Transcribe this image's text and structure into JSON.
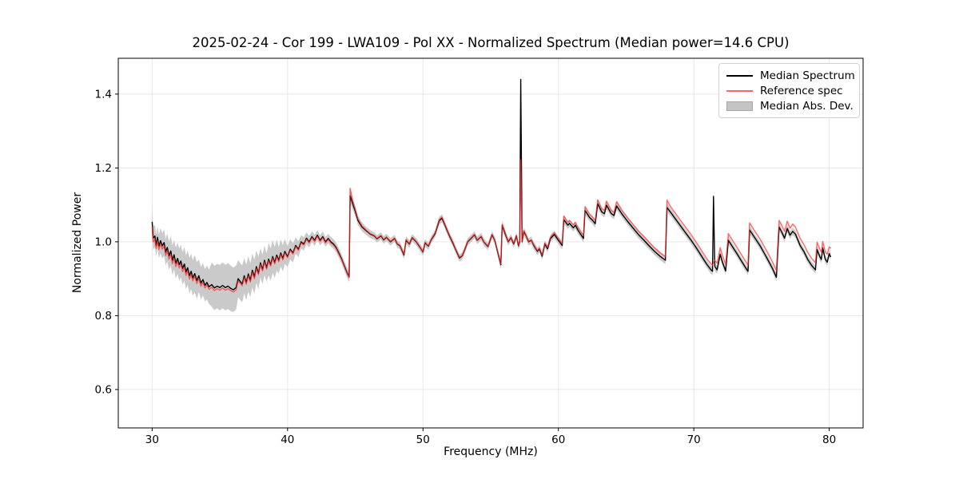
{
  "chart_data": {
    "type": "line",
    "title": "2025-02-24 - Cor 199 - LWA109 - Pol XX - Normalized Spectrum (Median power=14.6 CPU)",
    "xlabel": "Frequency (MHz)",
    "ylabel": "Normalized Power",
    "xlim": [
      27.5,
      82.5
    ],
    "ylim": [
      0.496,
      1.497
    ],
    "grid": true,
    "legend_position": "upper right",
    "xticks": [
      {
        "v": 30,
        "label": "30"
      },
      {
        "v": 40,
        "label": "40"
      },
      {
        "v": 50,
        "label": "50"
      },
      {
        "v": 60,
        "label": "60"
      },
      {
        "v": 70,
        "label": "70"
      },
      {
        "v": 80,
        "label": "80"
      }
    ],
    "yticks": [
      {
        "v": 0.6,
        "label": "0.6"
      },
      {
        "v": 0.8,
        "label": "0.8"
      },
      {
        "v": 1.0,
        "label": "1.0"
      },
      {
        "v": 1.2,
        "label": "1.2"
      },
      {
        "v": 1.4,
        "label": "1.4"
      }
    ],
    "colors": {
      "median": "#000000",
      "reference": "#ff2a2a",
      "reference_opacity": 0.72,
      "band": "#c4c4c4",
      "band_opacity": 0.9,
      "grid": "#e6e6e6",
      "frame": "#000000"
    },
    "series": [
      {
        "name": "Median Spectrum",
        "color": "#000000",
        "style": "line"
      },
      {
        "name": "Reference spec",
        "color": "#ff2a2a",
        "style": "line"
      },
      {
        "name": "Median Abs. Dev.",
        "color": "#c4c4c4",
        "style": "band"
      }
    ],
    "notes": {
      "big_spike": {
        "freq": 57.2,
        "median_peak": 1.44,
        "reference_peak": 1.22,
        "mad_top": 1.476
      },
      "narrow_spike": {
        "freq": 71.45,
        "median_peak": 1.12
      },
      "step_jump": {
        "freq": 44.6,
        "peak": 1.13
      }
    },
    "data": {
      "x": [
        30.0,
        30.08,
        30.2,
        30.3,
        30.4,
        30.5,
        30.62,
        30.75,
        30.88,
        31.0,
        31.12,
        31.25,
        31.38,
        31.5,
        31.62,
        31.75,
        31.88,
        32.0,
        32.12,
        32.25,
        32.38,
        32.5,
        32.62,
        32.75,
        32.88,
        33.0,
        33.15,
        33.3,
        33.45,
        33.6,
        33.75,
        33.9,
        34.05,
        34.2,
        34.4,
        34.6,
        34.8,
        35.0,
        35.2,
        35.4,
        35.6,
        35.8,
        36.0,
        36.2,
        36.35,
        36.5,
        36.65,
        36.8,
        36.95,
        37.1,
        37.25,
        37.4,
        37.55,
        37.7,
        37.85,
        38.0,
        38.15,
        38.3,
        38.45,
        38.6,
        38.75,
        38.9,
        39.05,
        39.2,
        39.35,
        39.5,
        39.65,
        39.8,
        40.0,
        40.2,
        40.4,
        40.6,
        40.8,
        41.0,
        41.2,
        41.4,
        41.6,
        41.8,
        42.0,
        42.2,
        42.4,
        42.6,
        42.8,
        43.0,
        43.2,
        43.4,
        43.6,
        43.8,
        44.0,
        44.2,
        44.4,
        44.55,
        44.62,
        44.8,
        45.0,
        45.2,
        45.5,
        45.8,
        46.1,
        46.4,
        46.6,
        46.9,
        47.1,
        47.3,
        47.6,
        47.9,
        48.1,
        48.3,
        48.6,
        48.75,
        49.0,
        49.2,
        49.5,
        49.8,
        50.0,
        50.15,
        50.4,
        50.6,
        50.9,
        51.2,
        51.4,
        51.6,
        51.9,
        52.2,
        52.4,
        52.7,
        52.9,
        53.1,
        53.3,
        53.6,
        53.8,
        54.0,
        54.3,
        54.5,
        54.8,
        55.1,
        55.3,
        55.5,
        55.75,
        55.85,
        56.1,
        56.3,
        56.5,
        56.7,
        56.9,
        57.05,
        57.15,
        57.22,
        57.32,
        57.45,
        57.6,
        57.8,
        58.0,
        58.2,
        58.45,
        58.6,
        58.8,
        59.0,
        59.2,
        59.4,
        59.7,
        60.0,
        60.28,
        60.4,
        60.7,
        60.82,
        61.1,
        61.25,
        61.45,
        61.65,
        61.85,
        61.97,
        62.3,
        62.5,
        62.72,
        62.9,
        63.2,
        63.4,
        63.55,
        63.9,
        64.1,
        64.3,
        64.7,
        65.1,
        65.5,
        65.9,
        66.3,
        66.7,
        67.1,
        67.5,
        67.9,
        68.02,
        68.3,
        68.6,
        69.0,
        69.4,
        69.8,
        70.1,
        70.4,
        70.7,
        71.0,
        71.25,
        71.38,
        71.45,
        71.55,
        71.72,
        71.95,
        72.12,
        72.35,
        72.55,
        72.9,
        73.2,
        73.5,
        73.8,
        74.0,
        74.12,
        74.5,
        74.9,
        75.2,
        75.5,
        75.8,
        76.1,
        76.3,
        76.5,
        76.7,
        76.9,
        77.1,
        77.3,
        77.5,
        77.85,
        78.15,
        78.4,
        78.7,
        78.98,
        79.1,
        79.3,
        79.42,
        79.52,
        79.7,
        79.85,
        80.0,
        80.1
      ],
      "median": [
        1.053,
        1.01,
        1.016,
        0.99,
        1.012,
        0.988,
        1.003,
        0.989,
        0.998,
        0.972,
        0.985,
        0.962,
        0.975,
        0.95,
        0.965,
        0.942,
        0.955,
        0.938,
        0.948,
        0.928,
        0.94,
        0.918,
        0.93,
        0.908,
        0.92,
        0.902,
        0.914,
        0.895,
        0.908,
        0.888,
        0.898,
        0.882,
        0.89,
        0.878,
        0.884,
        0.875,
        0.88,
        0.876,
        0.882,
        0.876,
        0.88,
        0.874,
        0.87,
        0.876,
        0.9,
        0.893,
        0.886,
        0.908,
        0.89,
        0.913,
        0.896,
        0.923,
        0.905,
        0.933,
        0.915,
        0.943,
        0.925,
        0.95,
        0.93,
        0.953,
        0.938,
        0.96,
        0.944,
        0.964,
        0.95,
        0.97,
        0.955,
        0.974,
        0.96,
        0.98,
        0.97,
        0.99,
        0.98,
        1.0,
        0.994,
        1.01,
        1.0,
        1.014,
        1.004,
        1.018,
        1.004,
        1.014,
        1.0,
        1.009,
        1.0,
        0.994,
        0.984,
        0.969,
        0.953,
        0.934,
        0.916,
        0.905,
        1.125,
        1.104,
        1.083,
        1.058,
        1.04,
        1.03,
        1.021,
        1.016,
        1.008,
        1.016,
        1.005,
        1.012,
        1.0,
        1.009,
        0.994,
        0.989,
        0.964,
        1.004,
        0.994,
        1.011,
        1.0,
        0.984,
        0.972,
        0.997,
        0.988,
        1.005,
        1.022,
        1.057,
        1.064,
        1.047,
        1.02,
        0.997,
        0.98,
        0.956,
        0.962,
        0.98,
        1.0,
        1.011,
        1.019,
        1.004,
        1.014,
        0.999,
        0.987,
        1.019,
        1.004,
        0.974,
        0.938,
        1.044,
        1.019,
        1.0,
        1.011,
        0.994,
        1.016,
        0.989,
        1.0,
        1.44,
        1.0,
        1.028,
        1.017,
        1.0,
        1.004,
        0.989,
        0.974,
        0.981,
        0.961,
        0.994,
        0.981,
        1.008,
        1.02,
        1.004,
        0.99,
        1.06,
        1.045,
        1.05,
        1.038,
        1.045,
        1.031,
        1.02,
        1.009,
        1.085,
        1.066,
        1.059,
        1.049,
        1.103,
        1.081,
        1.076,
        1.099,
        1.077,
        1.071,
        1.097,
        1.075,
        1.056,
        1.038,
        1.02,
        1.005,
        0.989,
        0.974,
        0.961,
        0.95,
        1.093,
        1.079,
        1.064,
        1.044,
        1.024,
        1.004,
        0.988,
        0.971,
        0.954,
        0.937,
        0.925,
        0.92,
        1.123,
        0.933,
        0.924,
        0.966,
        0.944,
        0.921,
        1.004,
        0.984,
        0.967,
        0.949,
        0.931,
        0.92,
        1.032,
        1.011,
        0.989,
        0.969,
        0.949,
        0.928,
        0.904,
        1.04,
        1.026,
        1.01,
        1.036,
        1.018,
        1.028,
        1.021,
        0.99,
        0.972,
        0.953,
        0.936,
        0.924,
        0.979,
        0.96,
        0.952,
        0.983,
        0.953,
        0.945,
        0.968,
        0.96
      ],
      "reference": [
        1.04,
        1.0,
        1.006,
        0.982,
        1.003,
        0.979,
        0.994,
        0.98,
        0.989,
        0.963,
        0.976,
        0.953,
        0.966,
        0.941,
        0.956,
        0.933,
        0.946,
        0.929,
        0.939,
        0.919,
        0.931,
        0.909,
        0.921,
        0.899,
        0.911,
        0.894,
        0.906,
        0.887,
        0.9,
        0.88,
        0.89,
        0.875,
        0.883,
        0.871,
        0.877,
        0.868,
        0.873,
        0.869,
        0.875,
        0.869,
        0.873,
        0.868,
        0.864,
        0.87,
        0.894,
        0.888,
        0.881,
        0.903,
        0.885,
        0.908,
        0.891,
        0.918,
        0.9,
        0.928,
        0.911,
        0.939,
        0.921,
        0.946,
        0.926,
        0.949,
        0.934,
        0.956,
        0.94,
        0.96,
        0.946,
        0.966,
        0.951,
        0.97,
        0.957,
        0.977,
        0.967,
        0.987,
        0.977,
        0.997,
        0.991,
        1.007,
        0.997,
        1.011,
        1.001,
        1.015,
        1.001,
        1.011,
        0.997,
        1.006,
        0.997,
        0.991,
        0.981,
        0.966,
        0.951,
        0.932,
        0.914,
        0.903,
        1.145,
        1.112,
        1.088,
        1.062,
        1.043,
        1.032,
        1.022,
        1.017,
        1.009,
        1.017,
        1.006,
        1.013,
        1.001,
        1.01,
        0.995,
        0.99,
        0.966,
        1.006,
        0.995,
        1.012,
        1.001,
        0.985,
        0.973,
        0.999,
        0.989,
        1.006,
        1.024,
        1.06,
        1.067,
        1.049,
        1.022,
        0.999,
        0.981,
        0.958,
        0.963,
        0.981,
        1.001,
        1.012,
        1.02,
        1.005,
        1.015,
        1.0,
        0.988,
        1.02,
        1.005,
        0.975,
        0.94,
        1.047,
        1.021,
        1.001,
        1.012,
        0.995,
        1.017,
        0.99,
        1.001,
        1.222,
        1.001,
        1.03,
        1.018,
        1.001,
        1.005,
        0.991,
        0.976,
        0.983,
        0.964,
        0.997,
        0.985,
        1.012,
        1.025,
        1.009,
        0.995,
        1.07,
        1.053,
        1.058,
        1.046,
        1.053,
        1.039,
        1.028,
        1.017,
        1.095,
        1.075,
        1.068,
        1.058,
        1.114,
        1.09,
        1.085,
        1.11,
        1.086,
        1.08,
        1.109,
        1.085,
        1.066,
        1.048,
        1.03,
        1.015,
        0.999,
        0.984,
        0.971,
        0.96,
        1.113,
        1.094,
        1.079,
        1.059,
        1.039,
        1.019,
        1.003,
        0.986,
        0.969,
        0.952,
        0.941,
        0.936,
        0.944,
        0.95,
        0.942,
        0.984,
        0.962,
        0.939,
        1.022,
        1.001,
        0.984,
        0.966,
        0.948,
        0.937,
        1.051,
        1.029,
        1.007,
        0.987,
        0.967,
        0.946,
        0.922,
        1.058,
        1.044,
        1.028,
        1.056,
        1.037,
        1.048,
        1.04,
        1.009,
        0.991,
        0.972,
        0.955,
        0.943,
        0.999,
        0.98,
        0.972,
        1.001,
        0.973,
        0.966,
        0.986,
        0.983
      ],
      "mad": [
        0.037,
        0.032,
        0.03,
        0.03,
        0.03,
        0.032,
        0.034,
        0.034,
        0.036,
        0.036,
        0.038,
        0.038,
        0.04,
        0.04,
        0.04,
        0.042,
        0.042,
        0.044,
        0.044,
        0.044,
        0.046,
        0.046,
        0.046,
        0.048,
        0.048,
        0.048,
        0.05,
        0.05,
        0.044,
        0.044,
        0.044,
        0.044,
        0.046,
        0.046,
        0.06,
        0.06,
        0.06,
        0.062,
        0.062,
        0.062,
        0.062,
        0.062,
        0.06,
        0.06,
        0.05,
        0.05,
        0.05,
        0.048,
        0.048,
        0.048,
        0.046,
        0.046,
        0.046,
        0.044,
        0.044,
        0.04,
        0.04,
        0.04,
        0.038,
        0.044,
        0.044,
        0.044,
        0.042,
        0.042,
        0.036,
        0.036,
        0.036,
        0.034,
        0.028,
        0.028,
        0.026,
        0.022,
        0.022,
        0.018,
        0.018,
        0.016,
        0.016,
        0.015,
        0.015,
        0.014,
        0.014,
        0.014,
        0.013,
        0.013,
        0.013,
        0.013,
        0.013,
        0.013,
        0.013,
        0.013,
        0.014,
        0.015,
        0.02,
        0.016,
        0.014,
        0.013,
        0.012,
        0.011,
        0.011,
        0.01,
        0.01,
        0.01,
        0.01,
        0.01,
        0.01,
        0.01,
        0.01,
        0.01,
        0.011,
        0.011,
        0.01,
        0.01,
        0.01,
        0.01,
        0.01,
        0.01,
        0.01,
        0.01,
        0.01,
        0.011,
        0.011,
        0.01,
        0.01,
        0.01,
        0.01,
        0.01,
        0.01,
        0.01,
        0.01,
        0.01,
        0.01,
        0.01,
        0.01,
        0.01,
        0.01,
        0.01,
        0.01,
        0.01,
        0.012,
        0.013,
        0.011,
        0.01,
        0.01,
        0.01,
        0.01,
        0.01,
        0.012,
        0.036,
        0.012,
        0.01,
        0.01,
        0.01,
        0.01,
        0.01,
        0.01,
        0.01,
        0.01,
        0.01,
        0.01,
        0.01,
        0.01,
        0.01,
        0.011,
        0.012,
        0.01,
        0.01,
        0.01,
        0.01,
        0.01,
        0.01,
        0.011,
        0.012,
        0.01,
        0.01,
        0.011,
        0.012,
        0.01,
        0.01,
        0.011,
        0.01,
        0.01,
        0.011,
        0.01,
        0.01,
        0.01,
        0.01,
        0.01,
        0.01,
        0.01,
        0.01,
        0.011,
        0.013,
        0.01,
        0.01,
        0.01,
        0.01,
        0.01,
        0.01,
        0.01,
        0.01,
        0.01,
        0.011,
        0.012,
        0.022,
        0.012,
        0.011,
        0.011,
        0.01,
        0.011,
        0.012,
        0.01,
        0.01,
        0.01,
        0.01,
        0.011,
        0.012,
        0.01,
        0.01,
        0.01,
        0.01,
        0.01,
        0.011,
        0.012,
        0.01,
        0.01,
        0.011,
        0.01,
        0.01,
        0.01,
        0.01,
        0.01,
        0.01,
        0.01,
        0.011,
        0.011,
        0.01,
        0.01,
        0.01,
        0.01,
        0.01,
        0.01,
        0.01
      ]
    }
  }
}
